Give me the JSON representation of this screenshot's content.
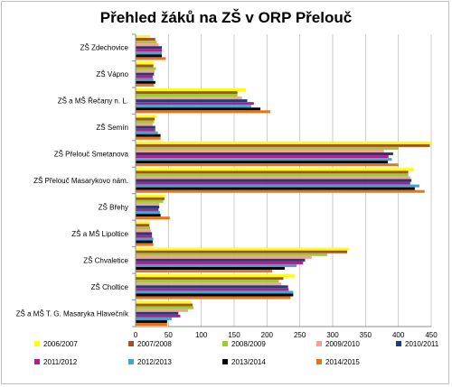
{
  "chart_data": {
    "type": "bar",
    "orientation": "horizontal",
    "title": "Přehled žáků na ZŠ v ORP Přelouč",
    "xlim": [
      0,
      450
    ],
    "xticks": [
      0,
      50,
      100,
      150,
      200,
      250,
      300,
      350,
      400,
      450
    ],
    "grid": true,
    "legend_position": "bottom",
    "categories": [
      "ZŠ Zdechovice",
      "ZŠ Vápno",
      "ZŠ a MŠ Řečany n. L.",
      "ZŠ Semín",
      "ZŠ Přelouč Smetanova",
      "ZŠ Přelouč Masarykovo nám.",
      "ZŠ Břehy",
      "ZŠ a MŠ Lipoltice",
      "ZŠ Chvaletice",
      "ZŠ Choltice",
      "ZŠ a MŠ T. G. Masaryka Hlavečník"
    ],
    "series": [
      {
        "name": "2006/2007",
        "color": "#ffff00",
        "values": [
          22,
          28,
          168,
          32,
          450,
          423,
          45,
          22,
          325,
          242,
          85
        ]
      },
      {
        "name": "2007/2008",
        "color": "#a0522d",
        "values": [
          30,
          27,
          155,
          29,
          448,
          415,
          44,
          21,
          322,
          225,
          87
        ]
      },
      {
        "name": "2008/2009",
        "color": "#9acd32",
        "values": [
          32,
          31,
          155,
          28,
          400,
          415,
          42,
          22,
          292,
          218,
          88
        ]
      },
      {
        "name": "2009/2010",
        "color": "#f4a0a0",
        "values": [
          35,
          29,
          162,
          26,
          378,
          418,
          36,
          23,
          268,
          222,
          80
        ]
      },
      {
        "name": "2010/2011",
        "color": "#1f3d7a",
        "values": [
          40,
          28,
          170,
          30,
          392,
          420,
          36,
          25,
          258,
          232,
          65
        ]
      },
      {
        "name": "2011/2012",
        "color": "#b0208a",
        "values": [
          40,
          26,
          180,
          30,
          385,
          418,
          35,
          25,
          255,
          233,
          68
        ]
      },
      {
        "name": "2012/2013",
        "color": "#3fa7c8",
        "values": [
          40,
          27,
          176,
          34,
          390,
          432,
          37,
          27,
          245,
          240,
          55
        ]
      },
      {
        "name": "2013/2014",
        "color": "#000000",
        "values": [
          40,
          30,
          190,
          38,
          384,
          425,
          38,
          26,
          227,
          240,
          48
        ]
      },
      {
        "name": "2014/2015",
        "color": "#e8741a",
        "values": [
          46,
          28,
          205,
          38,
          400,
          440,
          52,
          27,
          208,
          236,
          48
        ]
      }
    ]
  }
}
